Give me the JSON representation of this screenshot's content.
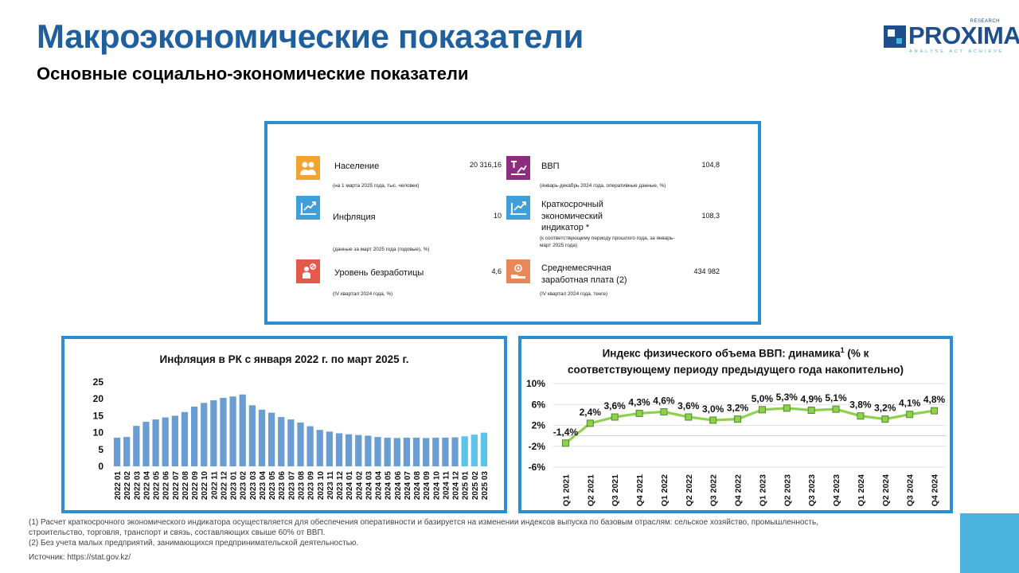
{
  "header": {
    "title": "Макроэкономические показатели",
    "subtitle": "Основные социально-экономические показатели"
  },
  "logo": {
    "word": "PROXIMA",
    "research": "RESEARCH",
    "tagline": "ANALYSE  ACT  ACHIEVE"
  },
  "kpis": [
    {
      "icon": "population-icon",
      "label": "Население",
      "value": "20 316,16",
      "note": "(на 1 марта 2025 года, тыс. человек)",
      "color": "#f2a431"
    },
    {
      "icon": "gdp-icon",
      "label": "ВВП",
      "value": "104,8",
      "note": "(январь-декабрь 2024 года, оперативные данные, %)",
      "color": "#8e2c7e"
    },
    {
      "icon": "inflation-icon",
      "label": "Инфляция",
      "value": "10",
      "note": "(данные за март 2025 года (годовые), %)",
      "color": "#3f9fd8"
    },
    {
      "icon": "short-term-indicator-icon",
      "label": "Краткосрочный экономический индикатор *",
      "value": "108,3",
      "note": "(к соответствующему периоду прошлого года, за январь-март 2025 года)",
      "color": "#3f9fd8"
    },
    {
      "icon": "unemployment-icon",
      "label": "Уровень безработицы",
      "value": "4,6",
      "note": "(IV квартал 2024 года, %)",
      "color": "#e35a4a"
    },
    {
      "icon": "salary-icon",
      "label": "Среднемесячная заработная плата (2)",
      "value": "434 982",
      "note": "(IV квартал 2024 года, тенге)",
      "color": "#e8875a"
    }
  ],
  "chart_data": [
    {
      "type": "bar",
      "title": "Инфляция в РК с января 2022 г. по март 2025 г.",
      "categories": [
        "2022 01",
        "2022 02",
        "2022 03",
        "2022 04",
        "2022 05",
        "2022 06",
        "2022 07",
        "2022 08",
        "2022 09",
        "2022 10",
        "2022 11",
        "2022 12",
        "2023 01",
        "2023 02",
        "2023 03",
        "2023 04",
        "2023 05",
        "2023 06",
        "2023 07",
        "2023 08",
        "2023 09",
        "2023 10",
        "2023 11",
        "2023 12",
        "2024 01",
        "2024 02",
        "2024 03",
        "2024 04",
        "2024 05",
        "2024 06",
        "2024 07",
        "2024 08",
        "2024 09",
        "2024 10",
        "2024 11",
        "2024 12",
        "2025 01",
        "2025 02",
        "2025 03"
      ],
      "values": [
        8.5,
        8.7,
        12.0,
        13.2,
        13.9,
        14.5,
        15.0,
        16.1,
        17.7,
        18.8,
        19.6,
        20.3,
        20.7,
        21.3,
        18.1,
        16.8,
        15.9,
        14.6,
        13.9,
        13.0,
        11.9,
        10.8,
        10.3,
        9.8,
        9.5,
        9.3,
        9.1,
        8.7,
        8.5,
        8.4,
        8.5,
        8.5,
        8.4,
        8.5,
        8.5,
        8.6,
        8.9,
        9.4,
        10.0
      ],
      "highlight_from": "2025 01",
      "ylim": [
        0,
        25
      ],
      "yticks": [
        "0",
        "5",
        "10",
        "15",
        "20",
        "25"
      ],
      "colors": {
        "bar": "#6a9ed2",
        "highlight": "#5cc3ea"
      }
    },
    {
      "type": "line",
      "title_main": "Индекс физического объема ВВП: динамика",
      "title_sup": "1",
      "title_rest": " (% к",
      "title_line2": "соответствующему периоду предыдущего года накопительно)",
      "x": [
        "Q1 2021",
        "Q2 2021",
        "Q3 2021",
        "Q4 2021",
        "Q1 2022",
        "Q2 2022",
        "Q3 2022",
        "Q4 2022",
        "Q1 2023",
        "Q2 2023",
        "Q3 2023",
        "Q4 2023",
        "Q1 2024",
        "Q2 2024",
        "Q3 2024",
        "Q4 2024"
      ],
      "values": [
        -1.4,
        2.4,
        3.6,
        4.3,
        4.6,
        3.6,
        3.0,
        3.2,
        5.0,
        5.3,
        4.9,
        5.1,
        3.8,
        3.2,
        4.1,
        4.8
      ],
      "labels": [
        "-1,4%",
        "2,4%",
        "3,6%",
        "4,3%",
        "4,6%",
        "3,6%",
        "3,0%",
        "3,2%",
        "5,0%",
        "5,3%",
        "4,9%",
        "5,1%",
        "3,8%",
        "3,2%",
        "4,1%",
        "4,8%"
      ],
      "ylim": [
        -6,
        10
      ],
      "yticks": [
        {
          "v": 10,
          "t": "10%"
        },
        {
          "v": 6,
          "t": "6%"
        },
        {
          "v": 2,
          "t": "2%"
        },
        {
          "v": -2,
          "t": "-2%"
        },
        {
          "v": -6,
          "t": "-6%"
        }
      ],
      "colors": {
        "line": "#8fd14f",
        "marker": "#8fd14f",
        "marker_border": "#4f8a2a"
      }
    }
  ],
  "footnotes": [
    "(1) Расчет краткосрочного экономического индикатора осуществляется для обеспечения оперативности и базируется на изменении индексов выпуска по базовым отраслям: сельское хозяйство, промышленность, строительство, торговля, транспорт и связь, составляющих свыше 60% от ВВП.",
    "(2) Без учета малых предприятий, занимающихся предпринимательской деятельностью."
  ],
  "source": "Источник: https://stat.gov.kz/"
}
